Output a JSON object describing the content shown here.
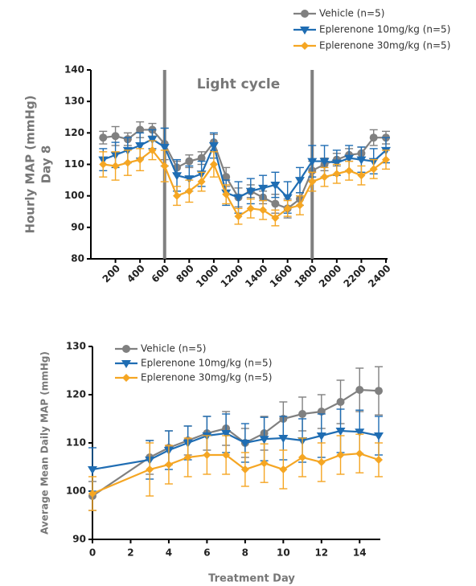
{
  "chart_data": [
    {
      "type": "line",
      "ylabel": [
        "Hourly MAP (mmHg)",
        "Day 8"
      ],
      "annotation": "Light cycle",
      "vlines": [
        600,
        1800
      ],
      "xlim": [
        0,
        2400
      ],
      "xticks": [
        200,
        400,
        600,
        800,
        1000,
        1200,
        1400,
        1600,
        1800,
        2000,
        2200,
        2400
      ],
      "ylim": [
        80,
        140
      ],
      "yticks": [
        80,
        90,
        100,
        110,
        120,
        130,
        140
      ],
      "legend": "top-right",
      "x": [
        100,
        200,
        300,
        400,
        500,
        600,
        700,
        800,
        900,
        1000,
        1100,
        1200,
        1300,
        1400,
        1500,
        1600,
        1700,
        1800,
        1900,
        2000,
        2100,
        2200,
        2300,
        2400
      ],
      "series": [
        {
          "name": "Vehicle (n=5)",
          "color": "#808080",
          "marker": "circle",
          "values": [
            118.5,
            119,
            118,
            121,
            121,
            116.5,
            109,
            111,
            112,
            117,
            106,
            99.5,
            101.5,
            99.5,
            97.5,
            96,
            99,
            108,
            110,
            111.5,
            113,
            113.5,
            118.5,
            118.5
          ],
          "errors": [
            2,
            3,
            2,
            2.5,
            2,
            5,
            2,
            2,
            2,
            2.5,
            3,
            3,
            2,
            2,
            3,
            3,
            2,
            3,
            2,
            2,
            2,
            2,
            2.5,
            2
          ]
        },
        {
          "name": "Eplerenone 10mg/kg (n=5)",
          "color": "#1f6db3",
          "marker": "triangle-down",
          "values": [
            111.5,
            113,
            114.5,
            116,
            118,
            115.5,
            106.5,
            105.5,
            107,
            116,
            101,
            99.5,
            101.5,
            102.5,
            103.5,
            99.5,
            105,
            111,
            111,
            110.5,
            112,
            111.5,
            111,
            114.5
          ],
          "errors": [
            3.5,
            4,
            4,
            4,
            3,
            6,
            5,
            4,
            4,
            4,
            4,
            5,
            4,
            4,
            4,
            5,
            4,
            5,
            5,
            4,
            4,
            4,
            4,
            4
          ]
        },
        {
          "name": "Eplerenone 30mg/kg (n=5)",
          "color": "#f5a623",
          "marker": "diamond",
          "values": [
            110,
            109.5,
            110.5,
            111.5,
            114.5,
            109.5,
            100,
            101.5,
            104.5,
            110,
            100.5,
            93.5,
            96,
            95.5,
            93,
            96,
            97,
            104.5,
            106,
            107,
            108,
            106.5,
            108.5,
            111.5
          ],
          "errors": [
            4,
            4.5,
            4,
            3.5,
            3,
            5,
            3,
            3.5,
            3,
            4,
            3,
            2.5,
            3,
            3,
            2.5,
            2.5,
            3,
            3,
            3,
            3,
            3,
            3,
            3,
            3
          ]
        }
      ]
    },
    {
      "type": "line",
      "xlabel": "Treatment Day",
      "ylabel": [
        "Average Mean Daily MAP (mmHg)"
      ],
      "xlim": [
        0,
        15
      ],
      "xticks": [
        0,
        2,
        4,
        6,
        8,
        10,
        12,
        14
      ],
      "ylim": [
        90,
        130
      ],
      "yticks": [
        90,
        100,
        110,
        120,
        130
      ],
      "legend": "top-left",
      "x": [
        0,
        3,
        4,
        5,
        6,
        7,
        8,
        9,
        10,
        11,
        12,
        13,
        14,
        15
      ],
      "series": [
        {
          "name": "Vehicle (n=5)",
          "color": "#808080",
          "marker": "circle",
          "values": [
            99,
            107,
            109,
            110.5,
            112,
            113,
            110,
            112,
            115,
            116,
            116.5,
            118.5,
            121,
            120.8
          ],
          "errors": [
            3,
            3.5,
            3.5,
            3,
            3.5,
            3.5,
            3,
            3.5,
            3.5,
            3.5,
            3.5,
            4.5,
            4.5,
            5
          ]
        },
        {
          "name": "Eplerenone 10mg/kg (n=5)",
          "color": "#1f6db3",
          "marker": "triangle-down",
          "values": [
            104.5,
            106.5,
            108.5,
            110,
            111.5,
            112,
            110,
            110.8,
            111,
            110.5,
            111.5,
            112.5,
            112.3,
            111.5
          ],
          "errors": [
            4.5,
            4,
            4,
            3.5,
            4,
            4,
            4,
            4.5,
            4.5,
            4.5,
            4.5,
            4.5,
            4.5,
            4
          ]
        },
        {
          "name": "Eplerenone 30mg/kg (n=5)",
          "color": "#f5a623",
          "marker": "diamond",
          "values": [
            99.5,
            104.5,
            105.5,
            107,
            107.5,
            107.5,
            104.5,
            105.8,
            104.5,
            107,
            106,
            107.5,
            107.8,
            106.5
          ],
          "errors": [
            3.5,
            5.5,
            4,
            4,
            4,
            4,
            3.5,
            4,
            4,
            4,
            4,
            4,
            4,
            3.5
          ]
        }
      ]
    }
  ]
}
